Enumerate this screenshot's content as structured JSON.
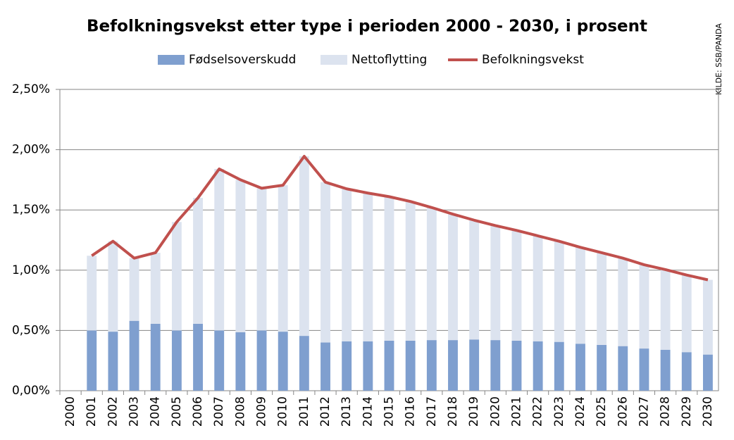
{
  "chart_data": {
    "type": "bar",
    "stacked": true,
    "title": "Befolkningsvekst etter type i perioden 2000 - 2030, i prosent",
    "source": "KILDE: SSB/PANDA",
    "categories": [
      "2000",
      "2001",
      "2002",
      "2003",
      "2004",
      "2005",
      "2006",
      "2007",
      "2008",
      "2009",
      "2010",
      "2011",
      "2012",
      "2013",
      "2014",
      "2015",
      "2016",
      "2017",
      "2018",
      "2019",
      "2020",
      "2021",
      "2022",
      "2023",
      "2024",
      "2025",
      "2026",
      "2027",
      "2028",
      "2029",
      "2030"
    ],
    "series": [
      {
        "name": "Fødselsoverskudd",
        "type": "bar",
        "color": "#7f9fcf",
        "values": [
          null,
          0.5,
          0.49,
          0.58,
          0.555,
          0.5,
          0.555,
          0.5,
          0.485,
          0.5,
          0.49,
          0.455,
          0.4,
          0.41,
          0.41,
          0.415,
          0.415,
          0.42,
          0.42,
          0.425,
          0.42,
          0.415,
          0.41,
          0.405,
          0.39,
          0.38,
          0.37,
          0.35,
          0.34,
          0.32,
          0.3
        ]
      },
      {
        "name": "Nettoflytting",
        "type": "bar",
        "color": "#dce3ef",
        "values": [
          null,
          0.62,
          0.75,
          0.52,
          0.59,
          0.9,
          1.045,
          1.34,
          1.265,
          1.18,
          1.215,
          1.49,
          1.33,
          1.265,
          1.23,
          1.195,
          1.155,
          1.1,
          1.045,
          0.99,
          0.95,
          0.915,
          0.875,
          0.835,
          0.8,
          0.765,
          0.73,
          0.695,
          0.665,
          0.64,
          0.62
        ]
      },
      {
        "name": "Befolkningsvekst",
        "type": "line",
        "color": "#c0504d",
        "values": [
          null,
          1.12,
          1.24,
          1.1,
          1.145,
          1.4,
          1.6,
          1.84,
          1.75,
          1.68,
          1.705,
          1.945,
          1.73,
          1.675,
          1.64,
          1.61,
          1.57,
          1.52,
          1.465,
          1.415,
          1.37,
          1.33,
          1.285,
          1.24,
          1.19,
          1.145,
          1.1,
          1.045,
          1.005,
          0.96,
          0.92
        ]
      }
    ],
    "ylim": [
      0,
      2.5
    ],
    "yticks": [
      {
        "value": 0,
        "label": "0,00%"
      },
      {
        "value": 0.5,
        "label": "0,50%"
      },
      {
        "value": 1,
        "label": "1,00%"
      },
      {
        "value": 1.5,
        "label": "1,50%"
      },
      {
        "value": 2,
        "label": "2,00%"
      },
      {
        "value": 2.5,
        "label": "2,50%"
      }
    ],
    "grid": true,
    "legend": "top"
  }
}
